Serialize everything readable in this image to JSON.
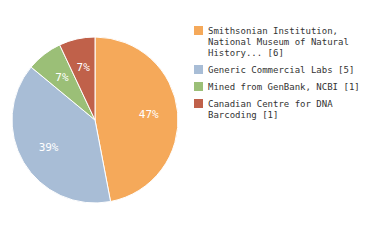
{
  "chart_data": {
    "type": "pie",
    "categories": [
      "Smithsonian Institution,\nNational Museum of Natural\nHistory... [6]",
      "Generic Commercial Labs [5]",
      "Mined from GenBank, NCBI [1]",
      "Canadian Centre for DNA\nBarcoding [1]"
    ],
    "values": [
      47,
      39,
      7,
      7
    ],
    "value_labels": [
      "47%",
      "39%",
      "7%",
      "7%"
    ],
    "colors": [
      "#F5A95A",
      "#A8BDD6",
      "#9BBF77",
      "#C0614A"
    ],
    "data_labels": true,
    "legend": "right"
  }
}
